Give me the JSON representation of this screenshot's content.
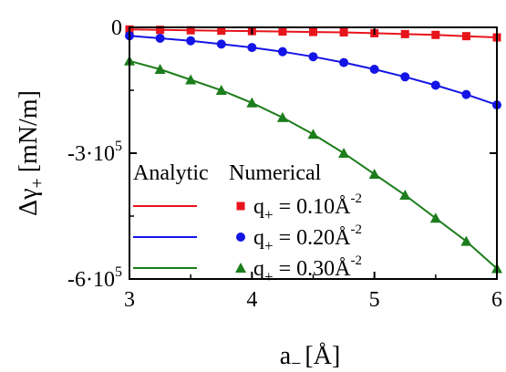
{
  "chart_data": {
    "type": "line",
    "xlabel_main": "a",
    "xlabel_sub": "−",
    "xlabel_unit": "[Å]",
    "ylabel_main": "Δγ",
    "ylabel_sub": "+",
    "ylabel_unit": "[mN/m]",
    "xlim": [
      3,
      6
    ],
    "ylim": [
      -600000,
      0
    ],
    "xticks": [
      {
        "value": 3,
        "label": "3"
      },
      {
        "value": 4,
        "label": "4"
      },
      {
        "value": 5,
        "label": "5"
      },
      {
        "value": 6,
        "label": "6"
      }
    ],
    "yticks": [
      {
        "value": 0,
        "label_base": "0",
        "label_exp": ""
      },
      {
        "value": -300000,
        "label_base": "-3·10",
        "label_exp": "5"
      },
      {
        "value": -600000,
        "label_base": "-6·10",
        "label_exp": "5"
      }
    ],
    "legend": {
      "header_left": "Analytic",
      "header_right": "Numerical",
      "position": "lower-left"
    },
    "x": [
      3.0,
      3.25,
      3.5,
      3.75,
      4.0,
      4.25,
      4.5,
      4.75,
      5.0,
      5.25,
      5.5,
      5.75,
      6.0
    ],
    "series": [
      {
        "label_var": "q",
        "label_sub": "+",
        "label_val": " = 0.10Å",
        "label_exp": "-2",
        "color": "#e8141c",
        "marker": "square",
        "values": [
          -5000,
          -6000,
          -7000,
          -8000,
          -9000,
          -10000,
          -11000,
          -12000,
          -14000,
          -16000,
          -18000,
          -21000,
          -24000
        ]
      },
      {
        "label_var": "q",
        "label_sub": "+",
        "label_val": " = 0.20Å",
        "label_exp": "-2",
        "color": "#1414e6",
        "marker": "circle",
        "values": [
          -20000,
          -26000,
          -32000,
          -40000,
          -48000,
          -58000,
          -70000,
          -84000,
          -100000,
          -118000,
          -138000,
          -160000,
          -185000
        ]
      },
      {
        "label_var": "q",
        "label_sub": "+",
        "label_val": " = 0.30Å",
        "label_exp": "-2",
        "color": "#1c7d1c",
        "marker": "triangle",
        "values": [
          -80000,
          -100000,
          -125000,
          -150000,
          -180000,
          -215000,
          -255000,
          -300000,
          -350000,
          -400000,
          -455000,
          -510000,
          -575000
        ]
      }
    ]
  }
}
